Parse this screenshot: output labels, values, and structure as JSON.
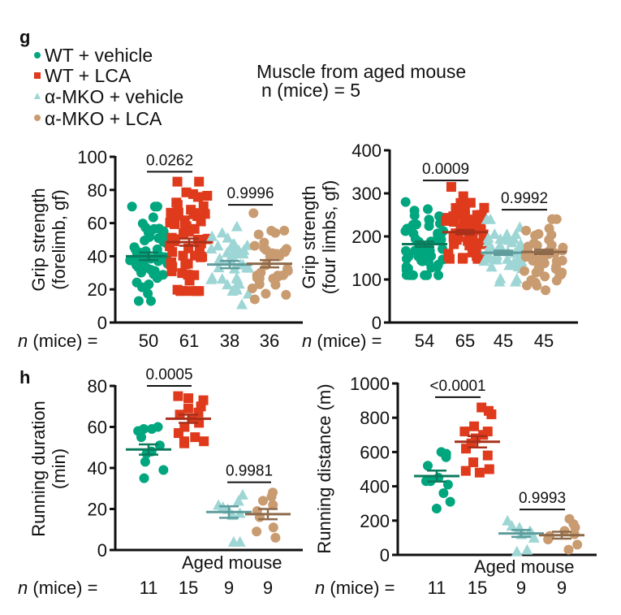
{
  "panel_labels": {
    "g": "g",
    "h": "h"
  },
  "legend": [
    {
      "label": "WT + vehicle",
      "color": "#00a67e",
      "marker": "circle"
    },
    {
      "label": "WT + LCA",
      "color": "#df3a1c",
      "marker": "square"
    },
    {
      "label": "α-MKO + vehicle",
      "color": "#9ed6d6",
      "marker": "triangle"
    },
    {
      "label": "α-MKO + LCA",
      "color": "#c99b70",
      "marker": "circle"
    }
  ],
  "note": {
    "line1": "Muscle from aged mouse",
    "line2": "n (mice) = 5"
  },
  "n_label": {
    "n": "n",
    "rest": " (mice) ="
  },
  "aged_mouse_label": "Aged mouse",
  "mean_colors": [
    "#0b7a5c",
    "#a8301a",
    "#5f9c9c",
    "#8e6a4b"
  ],
  "chart_data": [
    {
      "type": "scatter",
      "title": "",
      "ylabel": [
        "Grip strength",
        "(forelimb, gf)"
      ],
      "ylim": [
        0,
        100
      ],
      "yticks": [
        0,
        20,
        40,
        60,
        80,
        100
      ],
      "categories": [
        "WT + vehicle",
        "WT + LCA",
        "α-MKO + vehicle",
        "α-MKO + LCA"
      ],
      "groups": [
        {
          "n": "50",
          "mean": 40,
          "sem": 2.3,
          "min": 13,
          "max": 70
        },
        {
          "n": "61",
          "mean": 48.5,
          "sem": 2.2,
          "min": 19,
          "max": 85
        },
        {
          "n": "38",
          "mean": 35,
          "sem": 2.2,
          "min": 11,
          "max": 58
        },
        {
          "n": "36",
          "mean": 35.5,
          "sem": 2.2,
          "min": 14,
          "max": 66
        }
      ],
      "comparisons": [
        {
          "groups": [
            0,
            1
          ],
          "p": "0.0262",
          "y": 91
        },
        {
          "groups": [
            2,
            3
          ],
          "p": "0.9996",
          "y": 71
        }
      ],
      "subtitle": ""
    },
    {
      "type": "scatter",
      "ylabel": [
        "Grip strength",
        "(four limbs, gf)"
      ],
      "ylim": [
        0,
        400
      ],
      "yticks": [
        0,
        100,
        200,
        300,
        400
      ],
      "categories": [
        "WT + vehicle",
        "WT + LCA",
        "α-MKO + vehicle",
        "α-MKO + LCA"
      ],
      "groups": [
        {
          "n": "54",
          "mean": 182,
          "sem": 6,
          "min": 110,
          "max": 280
        },
        {
          "n": "65",
          "mean": 210,
          "sem": 5,
          "min": 148,
          "max": 315
        },
        {
          "n": "45",
          "mean": 162,
          "sem": 5,
          "min": 95,
          "max": 240
        },
        {
          "n": "45",
          "mean": 164,
          "sem": 5,
          "min": 75,
          "max": 240
        }
      ],
      "comparisons": [
        {
          "groups": [
            0,
            1
          ],
          "p": "0.0009",
          "y": 330
        },
        {
          "groups": [
            2,
            3
          ],
          "p": "0.9992",
          "y": 262
        }
      ]
    },
    {
      "type": "scatter",
      "ylabel": [
        "Running duration",
        "(min)"
      ],
      "ylim": [
        0,
        80
      ],
      "yticks": [
        0,
        20,
        40,
        60,
        80
      ],
      "categories": [
        "WT + vehicle",
        "WT + LCA",
        "α-MKO + vehicle",
        "α-MKO + LCA"
      ],
      "groups": [
        {
          "n": "11",
          "mean": 49,
          "sem": 2.5,
          "points": [
            60,
            59,
            59,
            58,
            55,
            51,
            48,
            47,
            43,
            39,
            35
          ]
        },
        {
          "n": "15",
          "mean": 64,
          "sem": 2.0,
          "points": [
            75,
            74,
            73,
            70,
            69,
            67,
            66,
            64,
            62,
            60,
            57,
            55,
            53,
            53,
            52
          ]
        },
        {
          "n": "9",
          "mean": 18.5,
          "sem": 2.8,
          "points": [
            27,
            24,
            22,
            21,
            20,
            18,
            17,
            4,
            4
          ]
        },
        {
          "n": "9",
          "mean": 17.5,
          "sem": 2.5,
          "points": [
            28,
            26,
            24,
            22,
            19,
            16,
            11,
            9,
            6
          ]
        }
      ],
      "comparisons": [
        {
          "groups": [
            0,
            1
          ],
          "p": "0.0005",
          "y": 80
        },
        {
          "groups": [
            2,
            3
          ],
          "p": "0.9981",
          "y": 33
        }
      ]
    },
    {
      "type": "scatter",
      "ylabel": [
        "Running distance (m)"
      ],
      "ylim": [
        0,
        1000
      ],
      "yticks": [
        0,
        200,
        400,
        600,
        800,
        1000
      ],
      "categories": [
        "WT + vehicle",
        "WT + LCA",
        "α-MKO + vehicle",
        "α-MKO + LCA"
      ],
      "groups": [
        {
          "n": "11",
          "mean": 460,
          "sem": 32,
          "points": [
            600,
            590,
            570,
            520,
            450,
            430,
            430,
            410,
            360,
            310,
            270
          ]
        },
        {
          "n": "15",
          "mean": 660,
          "sem": 33,
          "points": [
            860,
            840,
            820,
            750,
            720,
            720,
            700,
            680,
            650,
            620,
            580,
            540,
            500,
            490,
            480
          ]
        },
        {
          "n": "9",
          "mean": 125,
          "sem": 20,
          "points": [
            200,
            170,
            160,
            140,
            130,
            120,
            100,
            30,
            20
          ]
        },
        {
          "n": "9",
          "mean": 115,
          "sem": 20,
          "points": [
            210,
            180,
            160,
            140,
            120,
            110,
            90,
            60,
            30
          ]
        }
      ],
      "comparisons": [
        {
          "groups": [
            0,
            1
          ],
          "p": "<0.0001",
          "y": 920
        },
        {
          "groups": [
            2,
            3
          ],
          "p": "0.9993",
          "y": 265
        }
      ]
    }
  ]
}
